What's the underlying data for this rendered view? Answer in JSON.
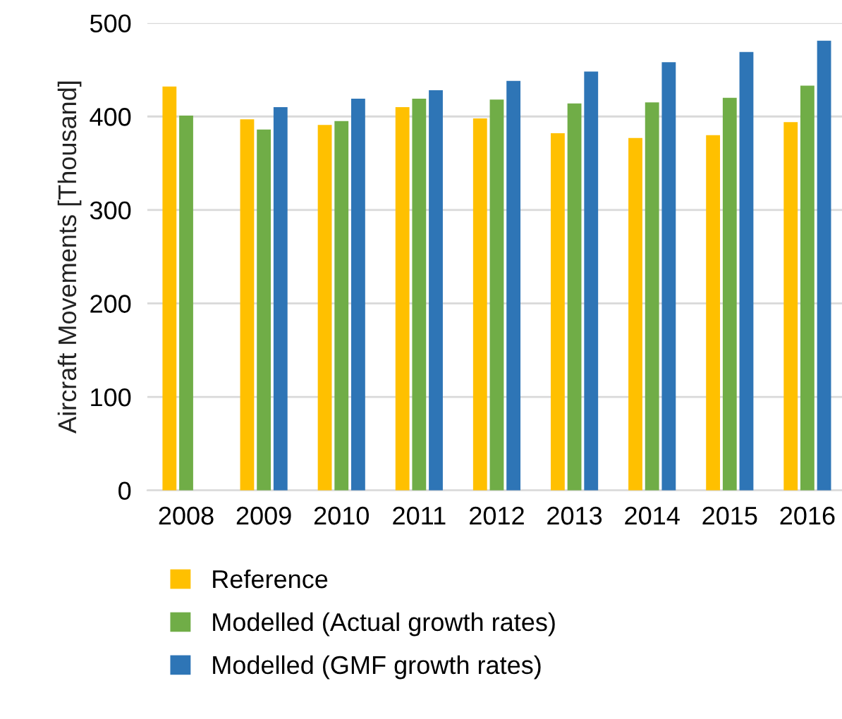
{
  "chart_data": {
    "type": "bar",
    "ylabel": "Aircraft Movements [Thousand]",
    "categories": [
      "2008",
      "2009",
      "2010",
      "2011",
      "2012",
      "2013",
      "2014",
      "2015",
      "2016"
    ],
    "series": [
      {
        "name": "Reference",
        "color": "#ffc000",
        "values": [
          432,
          397,
          391,
          410,
          398,
          382,
          377,
          380,
          394
        ]
      },
      {
        "name": "Modelled (Actual growth rates)",
        "color": "#70ad47",
        "values": [
          401,
          386,
          395,
          419,
          418,
          414,
          415,
          420,
          433
        ]
      },
      {
        "name": "Modelled (GMF growth rates)",
        "color": "#2e75b6",
        "values": [
          null,
          410,
          419,
          428,
          438,
          448,
          458,
          469,
          481
        ]
      }
    ],
    "ylim": [
      0,
      500
    ],
    "yticks": [
      0,
      100,
      200,
      300,
      400,
      500
    ],
    "grid": "y",
    "legend": "bottom"
  }
}
